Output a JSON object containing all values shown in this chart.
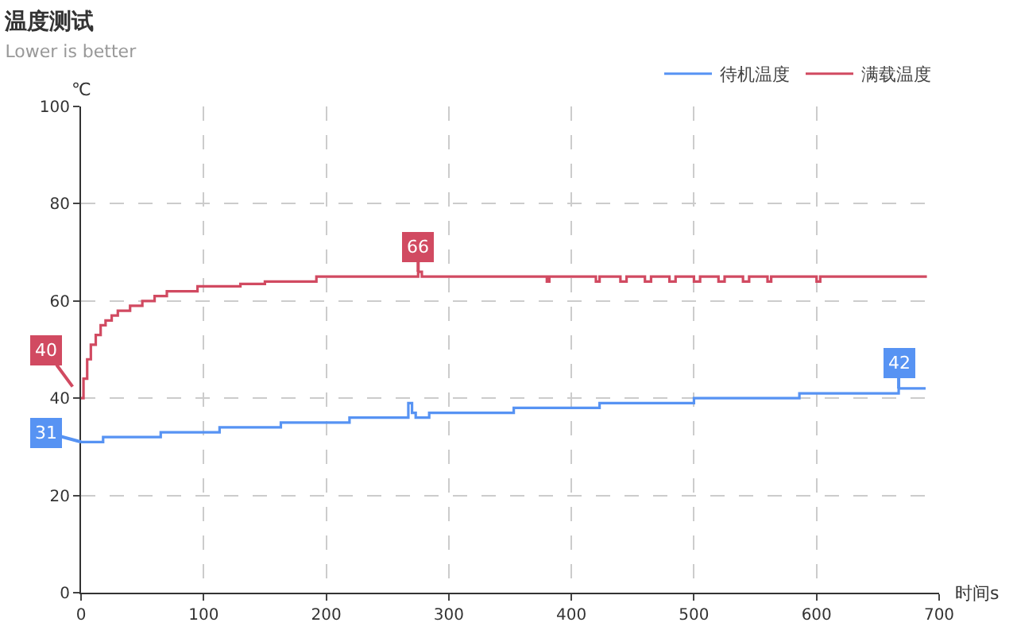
{
  "chart_data": {
    "type": "step",
    "title": "温度测试",
    "subtitle": "Lower is better",
    "xlabel": "时间s",
    "ylabel": "℃",
    "xlim": [
      0,
      700
    ],
    "xticks": [
      0,
      100,
      200,
      300,
      400,
      500,
      600,
      700
    ],
    "ylim": [
      0,
      100
    ],
    "yticks": [
      0,
      20,
      40,
      60,
      80,
      100
    ],
    "grid": true,
    "legend": "top right",
    "marker": "none",
    "line_style": "solid",
    "series": [
      {
        "name": "待机温度",
        "color": "#5793f3",
        "x": [
          0,
          18,
          65,
          113,
          163,
          219,
          265,
          267,
          270,
          273,
          284,
          353,
          423,
          500,
          586,
          667,
          689
        ],
        "values": [
          31,
          32,
          33,
          34,
          35,
          36,
          36,
          39,
          37,
          36,
          37,
          38,
          39,
          40,
          41,
          42,
          42
        ]
      },
      {
        "name": "满载温度",
        "color": "#d14a61",
        "x": [
          0,
          2,
          5,
          8,
          12,
          16,
          20,
          25,
          30,
          40,
          50,
          60,
          70,
          80,
          95,
          110,
          130,
          150,
          192,
          275,
          278,
          380,
          382,
          420,
          423,
          440,
          445,
          460,
          465,
          480,
          485,
          500,
          505,
          520,
          525,
          540,
          545,
          560,
          563,
          600,
          603,
          690
        ],
        "values": [
          40,
          44,
          48,
          51,
          53,
          55,
          56,
          57,
          58,
          59,
          60,
          61,
          62,
          62,
          63,
          63,
          63.5,
          64,
          65,
          66,
          65,
          64,
          65,
          64,
          65,
          64,
          65,
          64,
          65,
          64,
          65,
          64,
          65,
          64,
          65,
          64,
          65,
          64,
          65,
          64,
          65,
          65
        ]
      }
    ],
    "annotations": [
      {
        "text": "40",
        "x": 0,
        "y": 40
      },
      {
        "text": "31",
        "x": 0,
        "y": 31
      },
      {
        "text": "66",
        "x": 275,
        "y": 66
      },
      {
        "text": "42",
        "x": 667,
        "y": 42
      }
    ]
  }
}
